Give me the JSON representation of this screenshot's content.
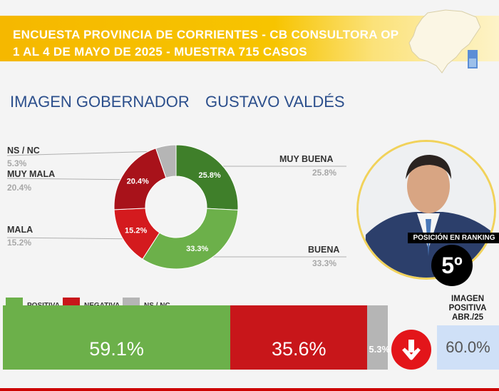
{
  "header": {
    "line1": "ENCUESTA PROVINCIA DE CORRIENTES - CB CONSULTORA OP",
    "line2": "1 AL 4 DE MAYO DE 2025 - MUESTRA 715 CASOS"
  },
  "title_part1": "IMAGEN GOBERNADOR",
  "title_part2": "GUSTAVO VALDÉS",
  "chart_data": [
    {
      "type": "pie",
      "subtype": "donut",
      "categories": [
        "MUY BUENA",
        "BUENA",
        "MALA",
        "MUY MALA",
        "NS / NC"
      ],
      "values": [
        25.8,
        33.3,
        15.2,
        20.4,
        5.3
      ],
      "value_labels": [
        "25.8%",
        "33.3%",
        "15.2%",
        "20.4%",
        "5.3%"
      ],
      "outer_labels": [
        "25.8%",
        "33.3%",
        "15.2%",
        "20.4%",
        "5.3%"
      ],
      "colors": [
        "#3f7f2a",
        "#6cb04a",
        "#d41a1e",
        "#a8121a",
        "#b5b5b5"
      ]
    },
    {
      "type": "bar",
      "subtype": "stacked-horizontal",
      "categories": [
        "POSITIVA",
        "NEGATIVA",
        "NS / NC"
      ],
      "values": [
        59.1,
        35.6,
        5.3
      ],
      "value_labels": [
        "59.1%",
        "35.6%",
        "5.3%"
      ],
      "colors": [
        "#6cb04a",
        "#c8161a",
        "#b5b5b5"
      ]
    }
  ],
  "ranking": {
    "label": "POSICIÓN EN RANKING",
    "position": "5º"
  },
  "previous": {
    "title_line1": "IMAGEN",
    "title_line2": "POSITIVA",
    "title_line3": "ABR./25",
    "value": "60.0%",
    "trend": "down"
  }
}
